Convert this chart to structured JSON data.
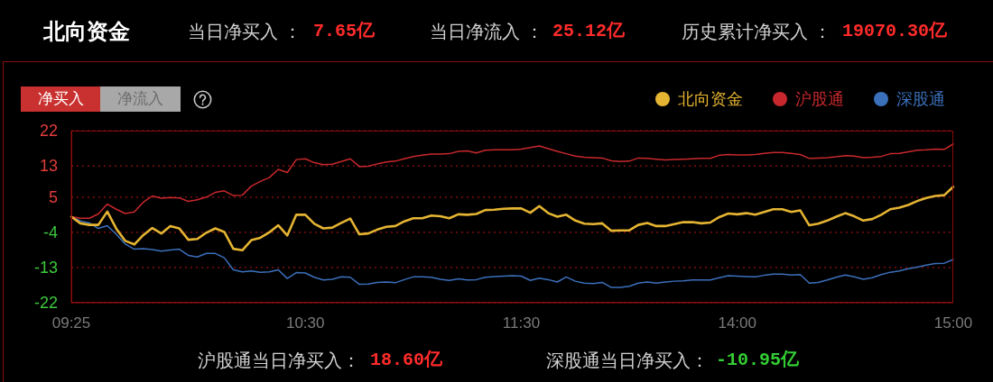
{
  "chart_data": {
    "type": "line",
    "title": "北向资金",
    "annotations": [
      "当日净买入 ：",
      "7.65亿",
      "当日净流入 ：",
      "25.12亿",
      "历史累计净买入 ：",
      "19070.30亿",
      "净买入",
      "净流入",
      "沪股通当日净买入：",
      "18.60亿",
      "深股通当日净买入：",
      "-10.95亿"
    ],
    "categories": [
      "09:25",
      null,
      null,
      null,
      null,
      null,
      null,
      null,
      null,
      null,
      null,
      null,
      null,
      null,
      null,
      null,
      null,
      null,
      null,
      null,
      null,
      null,
      null,
      null,
      null,
      null,
      "10:30",
      null,
      null,
      null,
      null,
      null,
      null,
      null,
      null,
      null,
      null,
      null,
      null,
      null,
      null,
      null,
      null,
      null,
      null,
      null,
      null,
      null,
      null,
      null,
      "11:30",
      null,
      null,
      null,
      null,
      null,
      null,
      null,
      null,
      null,
      null,
      null,
      null,
      null,
      null,
      null,
      null,
      null,
      null,
      null,
      null,
      null,
      null,
      null,
      "14:00",
      null,
      null,
      null,
      null,
      null,
      null,
      null,
      null,
      null,
      null,
      null,
      null,
      null,
      null,
      null,
      null,
      null,
      null,
      null,
      null,
      null,
      null,
      null,
      "15:00"
    ],
    "ylim": [
      -22,
      22
    ],
    "yticks": [
      -22,
      -13,
      -4,
      5,
      13,
      22
    ],
    "grid": "y",
    "legend": "top right",
    "series": [
      {
        "name": "北向资金",
        "color": "#e5b432",
        "values": [
          0,
          -1.7,
          -2.1,
          -2.1,
          1.3,
          -3.1,
          -6.2,
          -7.1,
          -4.7,
          -2.9,
          -4.3,
          -2.4,
          -3.0,
          -5.9,
          -5.7,
          -4.1,
          -3.0,
          -3.9,
          -8.2,
          -8.6,
          -6.0,
          -5.4,
          -4.0,
          -2.2,
          -4.8,
          0.5,
          0.5,
          -1.8,
          -3.0,
          -2.8,
          -1.6,
          -0.5,
          -4.5,
          -4.3,
          -3.3,
          -2.6,
          -2.4,
          -1.2,
          -0.4,
          -0.4,
          0.3,
          0.1,
          -0.4,
          0.6,
          0.5,
          0.7,
          1.7,
          1.8,
          2.0,
          2.1,
          2.1,
          1.0,
          2.7,
          0.9,
          0.0,
          0.5,
          -1.0,
          -1.8,
          -1.9,
          -1.7,
          -3.6,
          -3.5,
          -3.5,
          -2.1,
          -1.6,
          -2.4,
          -2.4,
          -1.9,
          -1.4,
          -1.4,
          -1.7,
          -1.5,
          -0.1,
          0.8,
          0.6,
          0.9,
          0.5,
          1.2,
          1.9,
          1.9,
          1.2,
          1.6,
          -2.2,
          -1.8,
          -1.0,
          0.0,
          0.9,
          0.1,
          -1.0,
          -0.6,
          0.5,
          1.9,
          2.3,
          3.0,
          4.0,
          4.8,
          5.3,
          5.5,
          7.65
        ]
      },
      {
        "name": "沪股通",
        "color": "#c8282d",
        "values": [
          0,
          -0.4,
          -0.4,
          0.7,
          3.2,
          1.9,
          0.8,
          1.2,
          3.7,
          5.3,
          4.7,
          4.9,
          4.8,
          3.9,
          4.3,
          5.0,
          6.2,
          6.6,
          5.4,
          5.5,
          7.8,
          9.0,
          10.0,
          12.1,
          11.3,
          14.6,
          14.8,
          13.8,
          13.3,
          13.4,
          14.1,
          14.8,
          12.8,
          12.9,
          13.5,
          14.0,
          14.2,
          14.8,
          15.4,
          15.7,
          16.0,
          16.0,
          16.1,
          16.7,
          16.8,
          16.3,
          17.0,
          17.1,
          17.1,
          17.1,
          17.3,
          17.7,
          18.1,
          17.4,
          16.7,
          16.1,
          15.5,
          15.2,
          15.1,
          15.0,
          14.3,
          14.1,
          14.2,
          15.0,
          14.9,
          14.7,
          14.5,
          14.6,
          14.7,
          14.8,
          14.9,
          14.9,
          15.7,
          15.9,
          15.8,
          15.8,
          15.9,
          16.2,
          16.4,
          16.4,
          16.2,
          15.9,
          14.9,
          15.0,
          15.1,
          15.3,
          15.6,
          15.5,
          15.1,
          15.2,
          15.4,
          16.1,
          16.2,
          16.6,
          17.0,
          17.1,
          17.3,
          17.2,
          18.6
        ]
      },
      {
        "name": "深股通",
        "color": "#3b70bb",
        "values": [
          0,
          -1.1,
          -1.6,
          -3.0,
          -2.3,
          -4.5,
          -7.0,
          -8.3,
          -8.2,
          -8.4,
          -8.8,
          -8.5,
          -8.3,
          -9.9,
          -10.3,
          -9.4,
          -9.4,
          -10.5,
          -13.6,
          -14.1,
          -13.9,
          -14.2,
          -14.1,
          -13.6,
          -15.8,
          -14.3,
          -14.4,
          -15.5,
          -16.2,
          -16.0,
          -15.4,
          -15.5,
          -17.3,
          -17.2,
          -16.8,
          -16.7,
          -16.9,
          -16.1,
          -15.4,
          -15.4,
          -15.5,
          -16.0,
          -16.3,
          -15.9,
          -16.2,
          -16.1,
          -15.5,
          -15.3,
          -15.2,
          -15.1,
          -15.2,
          -16.3,
          -15.7,
          -16.1,
          -16.7,
          -15.4,
          -16.5,
          -17.0,
          -17.1,
          -16.8,
          -18.1,
          -18.1,
          -17.8,
          -17.0,
          -16.7,
          -17.0,
          -16.7,
          -16.5,
          -16.4,
          -16.2,
          -16.2,
          -16.2,
          -15.6,
          -15.1,
          -15.2,
          -15.3,
          -15.4,
          -15.0,
          -14.7,
          -14.7,
          -14.9,
          -14.8,
          -17.0,
          -16.8,
          -16.2,
          -15.5,
          -14.9,
          -15.4,
          -16.0,
          -15.6,
          -14.8,
          -14.2,
          -13.9,
          -13.3,
          -12.9,
          -12.4,
          -12.0,
          -11.9,
          -10.95
        ]
      }
    ]
  }
}
